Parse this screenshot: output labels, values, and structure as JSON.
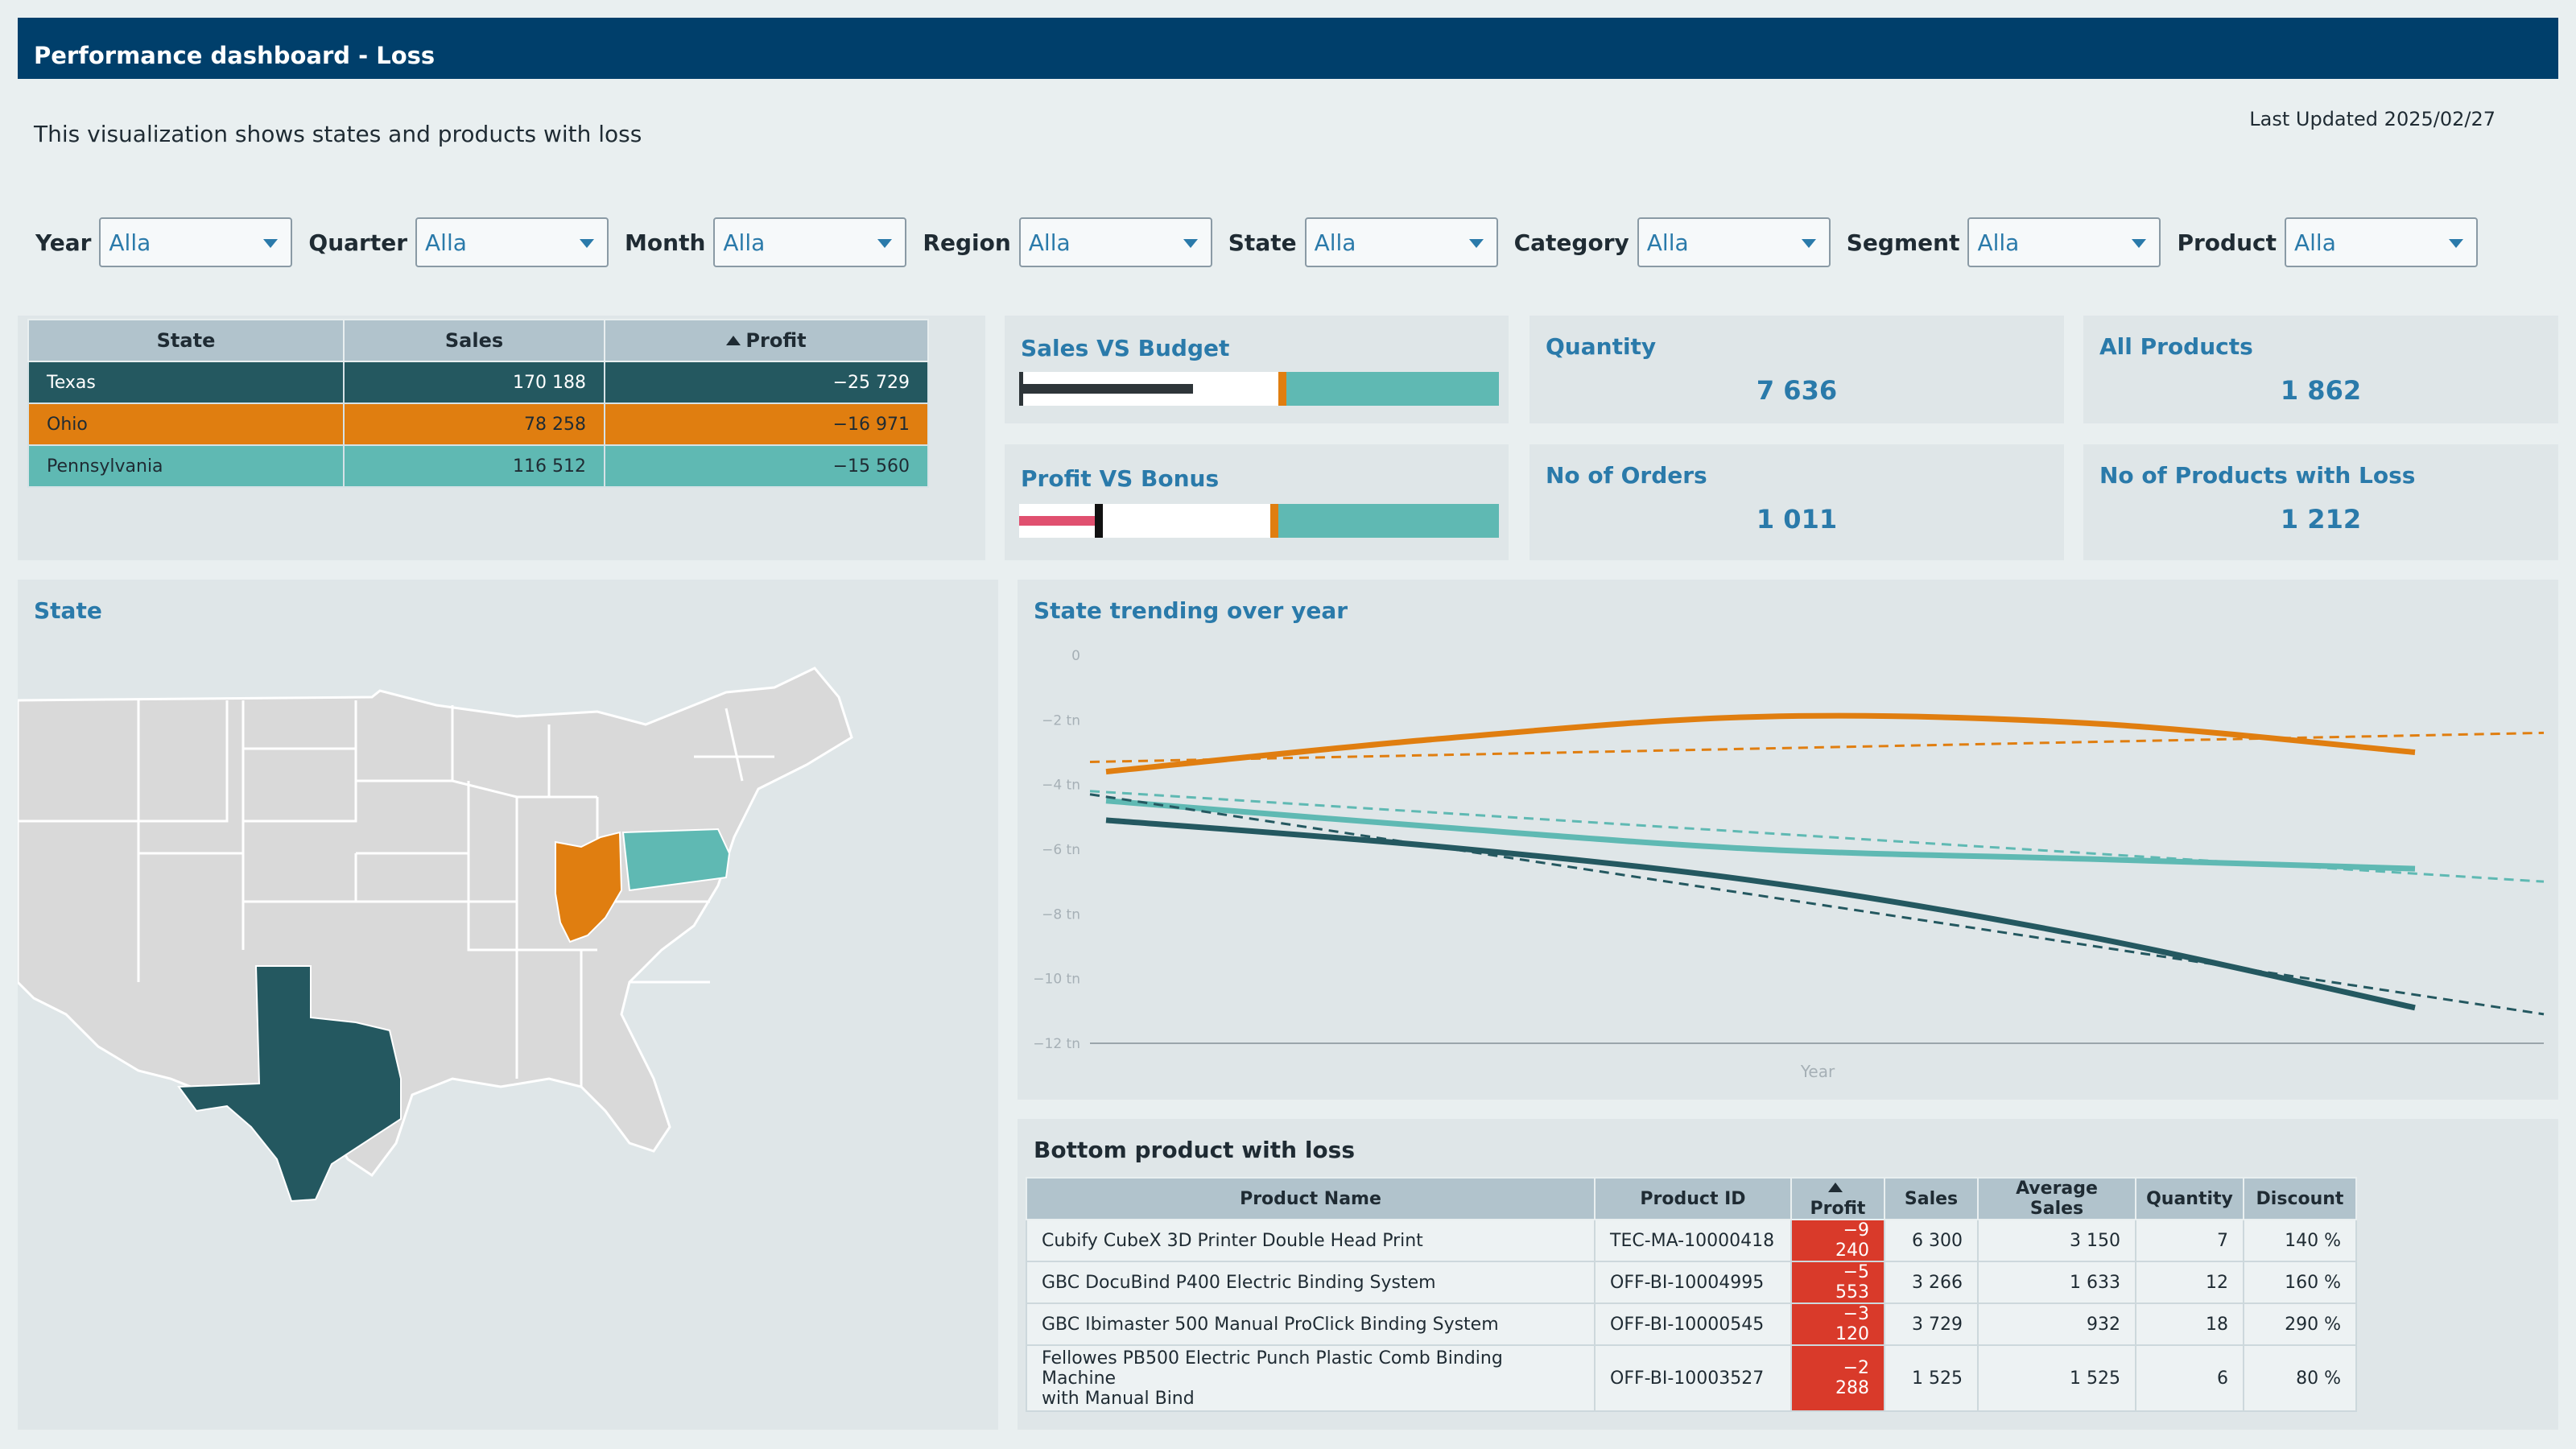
{
  "header": {
    "title": "Performance dashboard - Loss"
  },
  "subtitle": "This visualization shows states and products with loss",
  "last_updated": "Last Updated 2025/02/27",
  "filters": [
    {
      "label": "Year",
      "value": "Alla"
    },
    {
      "label": "Quarter",
      "value": "Alla"
    },
    {
      "label": "Month",
      "value": "Alla"
    },
    {
      "label": "Region",
      "value": "Alla"
    },
    {
      "label": "State",
      "value": "Alla"
    },
    {
      "label": "Category",
      "value": "Alla"
    },
    {
      "label": "Segment",
      "value": "Alla"
    },
    {
      "label": "Product",
      "value": "Alla"
    }
  ],
  "state_table": {
    "headers": [
      "State",
      "Sales",
      "Profit"
    ],
    "rows": [
      {
        "state": "Texas",
        "sales": "170 188",
        "profit": "−25 729"
      },
      {
        "state": "Ohio",
        "sales": "78 258",
        "profit": "−16 971"
      },
      {
        "state": "Pennsylvania",
        "sales": "116 512",
        "profit": "−15 560"
      }
    ]
  },
  "sales_vs_budget": {
    "title": "Sales VS Budget"
  },
  "profit_vs_bonus": {
    "title": "Profit VS Bonus"
  },
  "kpis": {
    "quantity": {
      "title": "Quantity",
      "value": "7 636"
    },
    "all_products": {
      "title": "All Products",
      "value": "1 862"
    },
    "orders": {
      "title": "No of Orders",
      "value": "1 011"
    },
    "products_loss": {
      "title": "No of Products with Loss",
      "value": "1 212"
    }
  },
  "map": {
    "title": "State"
  },
  "colors": {
    "texas": "#245860",
    "ohio": "#e07e10",
    "pennsylvania": "#5fb9b3",
    "header": "#003f6b",
    "accent": "#2a7aaa",
    "negative": "#d93a2a"
  },
  "chart_data": {
    "type": "line",
    "title": "State trending over year",
    "xlabel": "Year",
    "ylabel": "",
    "y_ticks": [
      "0",
      "−2 tn",
      "−4 tn",
      "−6 tn",
      "−8 tn",
      "−10 tn",
      "−12 tn"
    ],
    "ylim": [
      -12,
      0
    ],
    "series": [
      {
        "state": "Ohio",
        "color": "#e07e10",
        "x": [
          0,
          0.25,
          0.5,
          0.75,
          1
        ],
        "values": [
          -3.6,
          -2.6,
          -1.9,
          -2.1,
          -3.0
        ],
        "trend": {
          "start": -3.3,
          "end": -2.4
        }
      },
      {
        "state": "Pennsylvania",
        "color": "#5fb9b3",
        "x": [
          0,
          0.25,
          0.5,
          0.75,
          1
        ],
        "values": [
          -4.5,
          -5.3,
          -6.0,
          -6.3,
          -6.6
        ],
        "trend": {
          "start": -4.2,
          "end": -7.0
        }
      },
      {
        "state": "Texas",
        "color": "#245860",
        "x": [
          0,
          0.25,
          0.5,
          0.75,
          1
        ],
        "values": [
          -5.1,
          -5.9,
          -7.0,
          -8.7,
          -10.9
        ],
        "trend": {
          "start": -4.3,
          "end": -11.1
        }
      }
    ]
  },
  "product_table": {
    "title": "Bottom product with loss",
    "headers": [
      "Product Name",
      "Product ID",
      "Profit",
      "Sales",
      "Average Sales",
      "Quantity",
      "Discount"
    ],
    "rows": [
      {
        "name": "Cubify CubeX 3D Printer Double Head Print",
        "name2": "",
        "id": "TEC-MA-10000418",
        "profit": "−9 240",
        "sales": "6 300",
        "avg": "3 150",
        "qty": "7",
        "disc": "140 %"
      },
      {
        "name": "GBC DocuBind P400 Electric Binding System",
        "name2": "",
        "id": "OFF-BI-10004995",
        "profit": "−5 553",
        "sales": "3 266",
        "avg": "1 633",
        "qty": "12",
        "disc": "160 %"
      },
      {
        "name": "GBC Ibimaster 500 Manual ProClick Binding System",
        "name2": "",
        "id": "OFF-BI-10000545",
        "profit": "−3 120",
        "sales": "3 729",
        "avg": "932",
        "qty": "18",
        "disc": "290 %"
      },
      {
        "name": "Fellowes PB500 Electric Punch Plastic Comb Binding Machine",
        "name2": "with Manual Bind",
        "id": "OFF-BI-10003527",
        "profit": "−2 288",
        "sales": "1 525",
        "avg": "1 525",
        "qty": "6",
        "disc": "80 %"
      }
    ]
  }
}
